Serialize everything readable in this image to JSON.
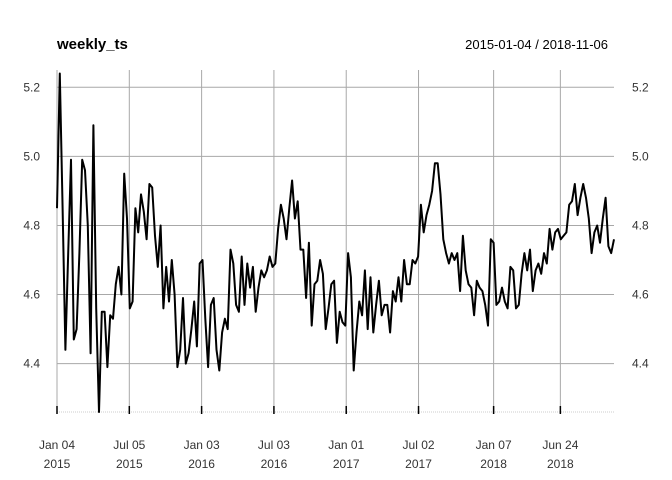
{
  "chart_data": {
    "type": "line",
    "title": "weekly_ts",
    "subtitle": "2015-01-04 / 2018-11-06",
    "ylim": [
      4.26,
      5.25
    ],
    "yticks": [
      4.4,
      4.6,
      4.8,
      5.0,
      5.2
    ],
    "grid": true,
    "x_start": "2015-01-04",
    "x_end": "2018-11-06",
    "x_ticks": [
      {
        "date": "2015-01-04",
        "line1": "Jan 04",
        "line2": "2015"
      },
      {
        "date": "2015-07-05",
        "line1": "Jul 05",
        "line2": "2015"
      },
      {
        "date": "2016-01-03",
        "line1": "Jan 03",
        "line2": "2016"
      },
      {
        "date": "2016-07-03",
        "line1": "Jul 03",
        "line2": "2016"
      },
      {
        "date": "2017-01-01",
        "line1": "Jan 01",
        "line2": "2017"
      },
      {
        "date": "2017-07-02",
        "line1": "Jul 02",
        "line2": "2017"
      },
      {
        "date": "2018-01-07",
        "line1": "Jan 07",
        "line2": "2018"
      },
      {
        "date": "2018-06-24",
        "line1": "Jun 24",
        "line2": "2018"
      }
    ],
    "series": [
      {
        "values": [
          4.85,
          5.24,
          4.85,
          4.44,
          4.72,
          4.99,
          4.47,
          4.5,
          4.72,
          4.99,
          4.96,
          4.8,
          4.43,
          5.09,
          4.56,
          4.26,
          4.55,
          4.55,
          4.39,
          4.54,
          4.53,
          4.63,
          4.68,
          4.6,
          4.95,
          4.82,
          4.56,
          4.58,
          4.85,
          4.78,
          4.89,
          4.84,
          4.76,
          4.92,
          4.91,
          4.77,
          4.68,
          4.8,
          4.56,
          4.68,
          4.58,
          4.7,
          4.6,
          4.39,
          4.44,
          4.59,
          4.4,
          4.43,
          4.5,
          4.58,
          4.45,
          4.69,
          4.7,
          4.53,
          4.39,
          4.57,
          4.59,
          4.44,
          4.38,
          4.49,
          4.53,
          4.5,
          4.73,
          4.69,
          4.57,
          4.55,
          4.71,
          4.57,
          4.69,
          4.62,
          4.68,
          4.55,
          4.62,
          4.67,
          4.65,
          4.67,
          4.71,
          4.68,
          4.69,
          4.79,
          4.86,
          4.82,
          4.76,
          4.85,
          4.93,
          4.82,
          4.87,
          4.73,
          4.73,
          4.59,
          4.75,
          4.51,
          4.63,
          4.64,
          4.7,
          4.66,
          4.5,
          4.56,
          4.63,
          4.64,
          4.46,
          4.55,
          4.52,
          4.51,
          4.72,
          4.65,
          4.38,
          4.49,
          4.58,
          4.54,
          4.67,
          4.5,
          4.65,
          4.49,
          4.57,
          4.64,
          4.54,
          4.57,
          4.57,
          4.49,
          4.61,
          4.58,
          4.65,
          4.58,
          4.7,
          4.63,
          4.63,
          4.7,
          4.69,
          4.71,
          4.86,
          4.78,
          4.83,
          4.86,
          4.9,
          4.98,
          4.98,
          4.89,
          4.76,
          4.72,
          4.69,
          4.72,
          4.7,
          4.72,
          4.61,
          4.77,
          4.67,
          4.63,
          4.62,
          4.54,
          4.64,
          4.62,
          4.61,
          4.57,
          4.51,
          4.76,
          4.75,
          4.57,
          4.58,
          4.62,
          4.58,
          4.56,
          4.68,
          4.67,
          4.56,
          4.57,
          4.66,
          4.72,
          4.67,
          4.73,
          4.61,
          4.67,
          4.69,
          4.66,
          4.72,
          4.69,
          4.79,
          4.73,
          4.78,
          4.79,
          4.76,
          4.77,
          4.78,
          4.86,
          4.87,
          4.92,
          4.83,
          4.88,
          4.92,
          4.88,
          4.82,
          4.72,
          4.78,
          4.8,
          4.75,
          4.82,
          4.88,
          4.74,
          4.72,
          4.76
        ]
      }
    ]
  }
}
